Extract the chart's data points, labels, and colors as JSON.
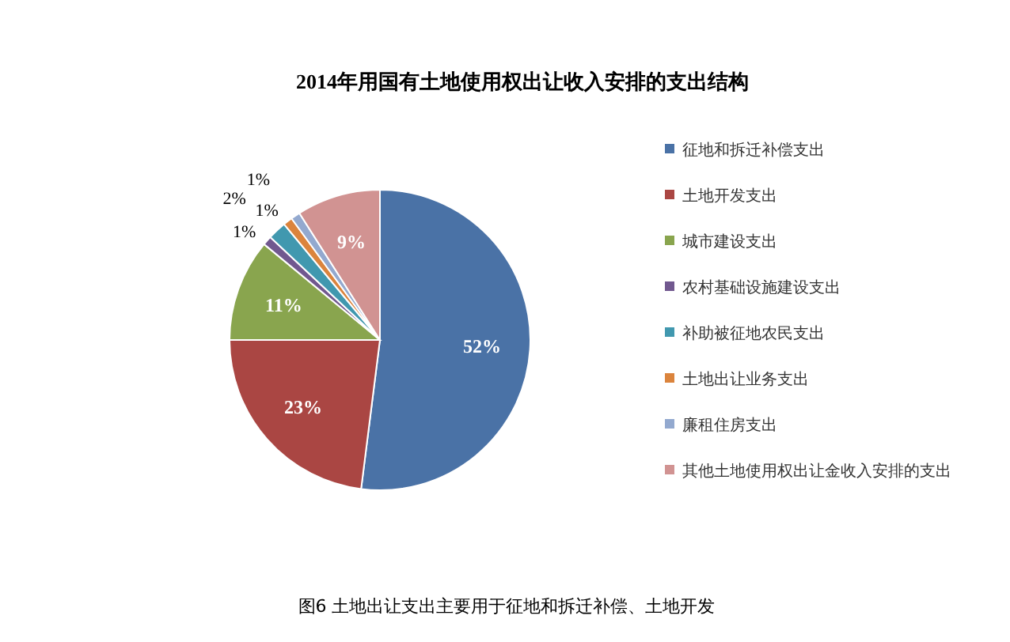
{
  "chart_data": {
    "type": "pie",
    "title": "2014年用国有土地使用权出让收入安排的支出结构",
    "categories": [
      "征地和拆迁补偿支出",
      "土地开发支出",
      "城市建设支出",
      "农村基础设施建设支出",
      "补助被征地农民支出",
      "土地出让业务支出",
      "廉租住房支出",
      "其他土地使用权出让金收入安排的支出"
    ],
    "values": [
      52,
      23,
      11,
      1,
      2,
      1,
      1,
      9
    ],
    "value_labels": [
      "52%",
      "23%",
      "11%",
      "1%",
      "2%",
      "1%",
      "1%",
      "9%"
    ],
    "colors": [
      "#4a72a6",
      "#aa4643",
      "#89a54e",
      "#71588f",
      "#4198af",
      "#db843d",
      "#93a9cf",
      "#d19392"
    ],
    "legend": "right",
    "annotations": [
      "图6 土地出让支出主要用于征地和拆迁补偿、土地开发"
    ]
  }
}
